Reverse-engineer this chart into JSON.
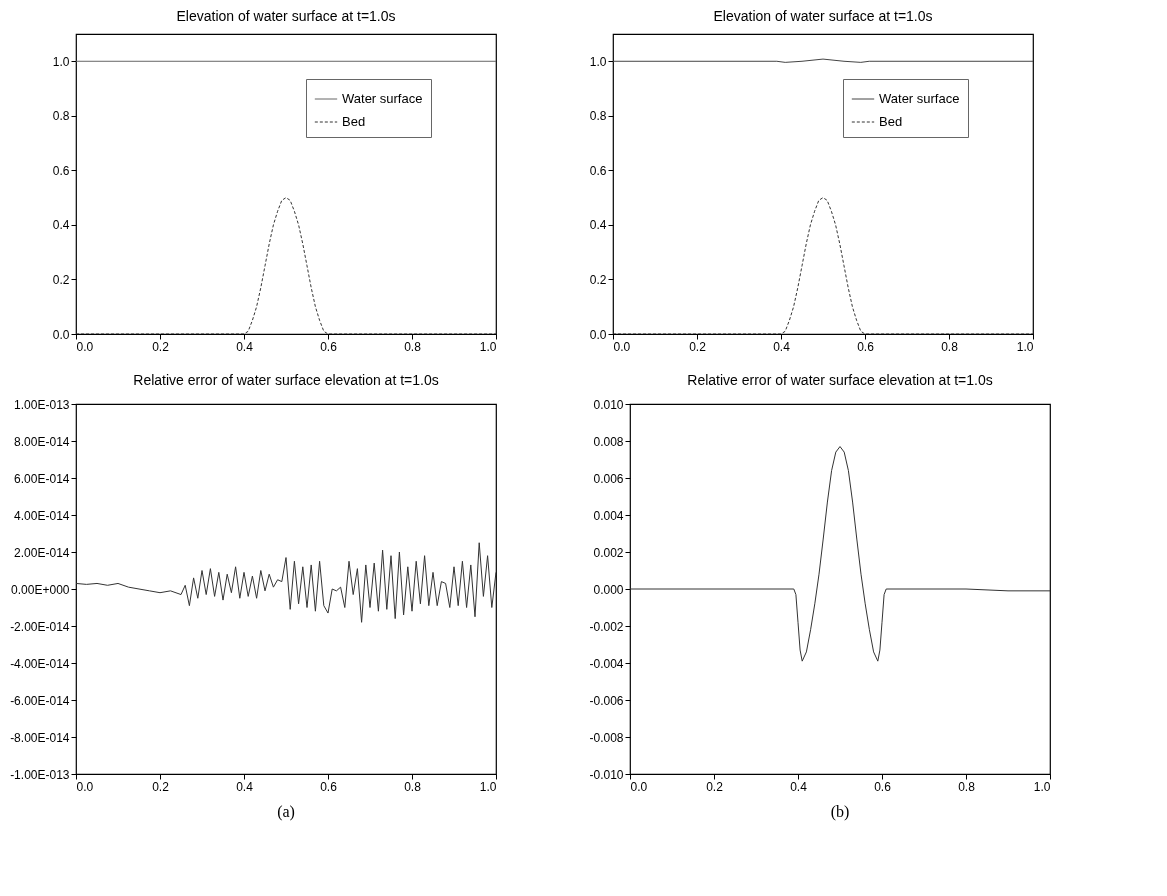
{
  "chart_data": [
    {
      "type": "line",
      "title": "Elevation of water surface at t=1.0s",
      "legend": "top right",
      "xlim": [
        0,
        1
      ],
      "ylim": [
        0,
        1.1
      ],
      "xticks": [
        {
          "value": 0,
          "label": "0.0"
        },
        {
          "value": 0.2,
          "label": "0.2"
        },
        {
          "value": 0.4,
          "label": "0.4"
        },
        {
          "value": 0.6,
          "label": "0.6"
        },
        {
          "value": 0.8,
          "label": "0.8"
        },
        {
          "value": 1,
          "label": "1.0"
        }
      ],
      "yticks": [
        {
          "value": 0,
          "label": "0.0"
        },
        {
          "value": 0.2,
          "label": "0.2"
        },
        {
          "value": 0.4,
          "label": "0.4"
        },
        {
          "value": 0.6,
          "label": "0.6"
        },
        {
          "value": 0.8,
          "label": "0.8"
        },
        {
          "value": 1,
          "label": "1.0"
        }
      ],
      "series": [
        {
          "name": "Water surface",
          "color": "#666666",
          "line_style": "solid",
          "x": [
            0,
            1
          ],
          "values": [
            1,
            1
          ]
        },
        {
          "name": "Bed",
          "color": "#333333",
          "line_style": "dashed",
          "x": [
            0,
            0.4,
            0.41,
            0.42,
            0.43,
            0.44,
            0.45,
            0.46,
            0.47,
            0.48,
            0.49,
            0.5,
            0.51,
            0.52,
            0.53,
            0.54,
            0.55,
            0.56,
            0.57,
            0.58,
            0.59,
            0.6,
            1
          ],
          "values": [
            0,
            0,
            0.01,
            0.05,
            0.1,
            0.17,
            0.25,
            0.33,
            0.4,
            0.45,
            0.49,
            0.5,
            0.49,
            0.45,
            0.4,
            0.33,
            0.25,
            0.17,
            0.1,
            0.05,
            0.01,
            0,
            0
          ]
        }
      ]
    },
    {
      "type": "line",
      "title": "Elevation of water surface at t=1.0s",
      "legend": "top right",
      "xlim": [
        0,
        1
      ],
      "ylim": [
        0,
        1.1
      ],
      "xticks": [
        {
          "value": 0,
          "label": "0.0"
        },
        {
          "value": 0.2,
          "label": "0.2"
        },
        {
          "value": 0.4,
          "label": "0.4"
        },
        {
          "value": 0.6,
          "label": "0.6"
        },
        {
          "value": 0.8,
          "label": "0.8"
        },
        {
          "value": 1,
          "label": "1.0"
        }
      ],
      "yticks": [
        {
          "value": 0,
          "label": "0.0"
        },
        {
          "value": 0.2,
          "label": "0.2"
        },
        {
          "value": 0.4,
          "label": "0.4"
        },
        {
          "value": 0.6,
          "label": "0.6"
        },
        {
          "value": 0.8,
          "label": "0.8"
        },
        {
          "value": 1,
          "label": "1.0"
        }
      ],
      "series": [
        {
          "name": "Water surface",
          "color": "#444444",
          "line_style": "solid",
          "x": [
            0,
            0.39,
            0.41,
            0.45,
            0.5,
            0.55,
            0.59,
            0.61,
            1
          ],
          "values": [
            1,
            1,
            0.996,
            1,
            1.008,
            1,
            0.996,
            1,
            1
          ]
        },
        {
          "name": "Bed",
          "color": "#333333",
          "line_style": "dashed",
          "x": [
            0,
            0.4,
            0.41,
            0.42,
            0.43,
            0.44,
            0.45,
            0.46,
            0.47,
            0.48,
            0.49,
            0.5,
            0.51,
            0.52,
            0.53,
            0.54,
            0.55,
            0.56,
            0.57,
            0.58,
            0.59,
            0.6,
            1
          ],
          "values": [
            0,
            0,
            0.01,
            0.05,
            0.1,
            0.17,
            0.25,
            0.33,
            0.4,
            0.45,
            0.49,
            0.5,
            0.49,
            0.45,
            0.4,
            0.33,
            0.25,
            0.17,
            0.1,
            0.05,
            0.01,
            0,
            0
          ]
        }
      ]
    },
    {
      "type": "line",
      "title": "Relative error of water surface elevation at t=1.0s",
      "annotations": [
        "(a)"
      ],
      "xlim": [
        0,
        1
      ],
      "ylim": [
        -1e-13,
        1e-13
      ],
      "xticks": [
        {
          "value": 0,
          "label": "0.0"
        },
        {
          "value": 0.2,
          "label": "0.2"
        },
        {
          "value": 0.4,
          "label": "0.4"
        },
        {
          "value": 0.6,
          "label": "0.6"
        },
        {
          "value": 0.8,
          "label": "0.8"
        },
        {
          "value": 1,
          "label": "1.0"
        }
      ],
      "yticks": [
        {
          "value": 1e-13,
          "label": "1.00E-013"
        },
        {
          "value": 8e-14,
          "label": "8.00E-014"
        },
        {
          "value": 6e-14,
          "label": "6.00E-014"
        },
        {
          "value": 4e-14,
          "label": "4.00E-014"
        },
        {
          "value": 2e-14,
          "label": "2.00E-014"
        },
        {
          "value": 0,
          "label": "0.00E+000"
        },
        {
          "value": -2e-14,
          "label": "-2.00E-014"
        },
        {
          "value": -4e-14,
          "label": "-4.00E-014"
        },
        {
          "value": -6e-14,
          "label": "-6.00E-014"
        },
        {
          "value": -8e-14,
          "label": "-8.00E-014"
        },
        {
          "value": -1e-13,
          "label": "-1.00E-013"
        }
      ],
      "series": [
        {
          "color": "#333333",
          "line_style": "solid",
          "x": [
            0,
            0.025,
            0.05,
            0.075,
            0.1,
            0.125,
            0.15,
            0.175,
            0.2,
            0.225,
            0.25,
            0.26,
            0.27,
            0.28,
            0.29,
            0.3,
            0.31,
            0.32,
            0.33,
            0.34,
            0.35,
            0.36,
            0.37,
            0.38,
            0.39,
            0.4,
            0.41,
            0.42,
            0.43,
            0.44,
            0.45,
            0.46,
            0.47,
            0.48,
            0.49,
            0.5,
            0.51,
            0.52,
            0.53,
            0.54,
            0.55,
            0.56,
            0.57,
            0.58,
            0.59,
            0.6,
            0.61,
            0.62,
            0.63,
            0.64,
            0.65,
            0.66,
            0.67,
            0.68,
            0.69,
            0.7,
            0.71,
            0.72,
            0.73,
            0.74,
            0.75,
            0.76,
            0.77,
            0.78,
            0.79,
            0.8,
            0.81,
            0.82,
            0.83,
            0.84,
            0.85,
            0.86,
            0.87,
            0.88,
            0.89,
            0.9,
            0.91,
            0.92,
            0.93,
            0.94,
            0.95,
            0.96,
            0.97,
            0.98,
            0.99,
            1
          ],
          "values": [
            3e-15,
            2.5e-15,
            3e-15,
            2e-15,
            3e-15,
            1e-15,
            0,
            -1e-15,
            -2e-15,
            -1e-15,
            -3e-15,
            2e-15,
            -9e-15,
            6e-15,
            -5e-15,
            1e-14,
            -3e-15,
            1.1e-14,
            -4e-15,
            9e-15,
            -6e-15,
            8e-15,
            -2e-15,
            1.2e-14,
            -5e-15,
            9e-15,
            -4e-15,
            7e-15,
            -5e-15,
            1e-14,
            -1e-15,
            8e-15,
            1e-15,
            5e-15,
            4e-15,
            1.7e-14,
            -1.1e-14,
            1.5e-14,
            -8e-15,
            1.2e-14,
            -1e-14,
            1.3e-14,
            -1.2e-14,
            1.5e-14,
            -9e-15,
            -1.3e-14,
            0,
            -1e-15,
            1e-15,
            -1e-14,
            1.5e-14,
            -3e-15,
            1.1e-14,
            -1.8e-14,
            1.3e-14,
            -1e-14,
            1.4e-14,
            -1.2e-14,
            2.1e-14,
            -1.1e-14,
            1.8e-14,
            -1.6e-14,
            2e-14,
            -1.4e-14,
            1.2e-14,
            -1.2e-14,
            1.5e-14,
            -8e-15,
            1.8e-14,
            -9e-15,
            9e-15,
            -9e-15,
            4e-15,
            3e-15,
            -1e-14,
            1.2e-14,
            -9e-15,
            1.5e-14,
            -1e-14,
            1.3e-14,
            -1.5e-14,
            2.5e-14,
            -4e-15,
            1.8e-14,
            -1e-14,
            9e-15
          ]
        }
      ]
    },
    {
      "type": "line",
      "title": "Relative error of water surface elevation at t=1.0s",
      "annotations": [
        "(b)"
      ],
      "xlim": [
        0,
        1
      ],
      "ylim": [
        -0.01,
        0.01
      ],
      "xticks": [
        {
          "value": 0,
          "label": "0.0"
        },
        {
          "value": 0.2,
          "label": "0.2"
        },
        {
          "value": 0.4,
          "label": "0.4"
        },
        {
          "value": 0.6,
          "label": "0.6"
        },
        {
          "value": 0.8,
          "label": "0.8"
        },
        {
          "value": 1,
          "label": "1.0"
        }
      ],
      "yticks": [
        {
          "value": 0.01,
          "label": "0.010"
        },
        {
          "value": 0.008,
          "label": "0.008"
        },
        {
          "value": 0.006,
          "label": "0.006"
        },
        {
          "value": 0.004,
          "label": "0.004"
        },
        {
          "value": 0.002,
          "label": "0.002"
        },
        {
          "value": 0,
          "label": "0.000"
        },
        {
          "value": -0.002,
          "label": "-0.002"
        },
        {
          "value": -0.004,
          "label": "-0.004"
        },
        {
          "value": -0.006,
          "label": "-0.006"
        },
        {
          "value": -0.008,
          "label": "-0.008"
        },
        {
          "value": -0.01,
          "label": "-0.010"
        }
      ],
      "series": [
        {
          "color": "#333333",
          "line_style": "solid",
          "x": [
            0,
            0.39,
            0.395,
            0.4,
            0.405,
            0.41,
            0.42,
            0.43,
            0.44,
            0.45,
            0.46,
            0.47,
            0.48,
            0.49,
            0.5,
            0.51,
            0.52,
            0.53,
            0.54,
            0.55,
            0.56,
            0.57,
            0.58,
            0.59,
            0.595,
            0.6,
            0.605,
            0.61,
            0.8,
            0.9,
            1
          ],
          "values": [
            0,
            0,
            -0.0003,
            -0.0018,
            -0.0033,
            -0.0039,
            -0.0034,
            -0.0022,
            -0.0008,
            0.0008,
            0.0027,
            0.0047,
            0.0064,
            0.0074,
            0.0077,
            0.0074,
            0.0064,
            0.0047,
            0.0027,
            0.0008,
            -0.0008,
            -0.0022,
            -0.0034,
            -0.0039,
            -0.0033,
            -0.0018,
            -0.0003,
            0,
            0,
            -0.0001,
            -0.0001
          ]
        }
      ]
    }
  ]
}
